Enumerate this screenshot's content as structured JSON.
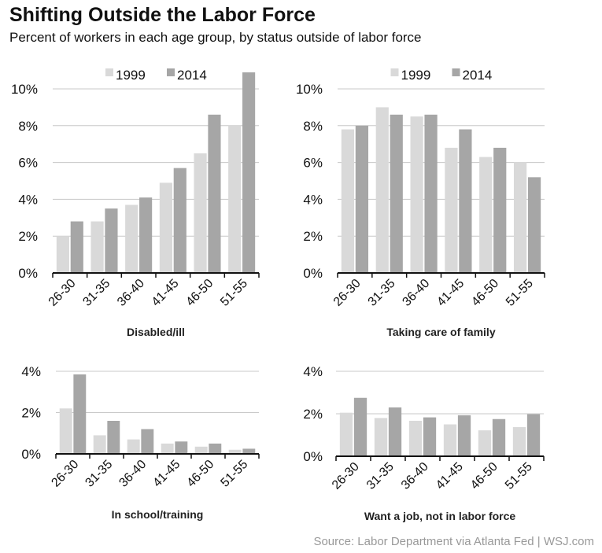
{
  "title": "Shifting Outside the Labor Force",
  "subtitle": "Percent of workers in each age group, by status outside of labor force",
  "source": "Source: Labor Department via Atlanta Fed |  WSJ.com",
  "colors": {
    "1999": "#d9d9d9",
    "2014": "#a6a6a6",
    "grid": "#c8c8c8",
    "axis": "#111111"
  },
  "chart_data": [
    {
      "type": "bar",
      "title": "Disabled/ill",
      "categories": [
        "26-30",
        "31-35",
        "36-40",
        "41-45",
        "46-50",
        "51-55"
      ],
      "ylim": [
        0,
        10
      ],
      "yticks": [
        "0%",
        "2%",
        "4%",
        "6%",
        "8%",
        "10%"
      ],
      "legend": "top",
      "series": [
        {
          "name": "1999",
          "values": [
            2.0,
            2.8,
            3.7,
            4.9,
            6.5,
            8.0
          ]
        },
        {
          "name": "2014",
          "values": [
            2.8,
            3.5,
            4.1,
            5.7,
            8.6,
            10.9
          ]
        }
      ]
    },
    {
      "type": "bar",
      "title": "Taking care of family",
      "categories": [
        "26-30",
        "31-35",
        "36-40",
        "41-45",
        "46-50",
        "51-55"
      ],
      "ylim": [
        0,
        10
      ],
      "yticks": [
        "0%",
        "2%",
        "4%",
        "6%",
        "8%",
        "10%"
      ],
      "legend": "top",
      "series": [
        {
          "name": "1999",
          "values": [
            7.8,
            9.0,
            8.5,
            6.8,
            6.3,
            6.0
          ]
        },
        {
          "name": "2014",
          "values": [
            8.0,
            8.6,
            8.6,
            7.8,
            6.8,
            5.2
          ]
        }
      ]
    },
    {
      "type": "bar",
      "title": "In school/training",
      "categories": [
        "26-30",
        "31-35",
        "36-40",
        "41-45",
        "46-50",
        "51-55"
      ],
      "ylim": [
        0,
        4
      ],
      "yticks": [
        "0%",
        "2%",
        "4%"
      ],
      "series": [
        {
          "name": "1999",
          "values": [
            2.2,
            0.9,
            0.7,
            0.5,
            0.35,
            0.2
          ]
        },
        {
          "name": "2014",
          "values": [
            3.85,
            1.6,
            1.2,
            0.6,
            0.5,
            0.25
          ]
        }
      ]
    },
    {
      "type": "bar",
      "title": "Want a job, not in labor force",
      "categories": [
        "26-30",
        "31-35",
        "36-40",
        "41-45",
        "46-50",
        "51-55"
      ],
      "ylim": [
        0,
        4
      ],
      "yticks": [
        "0%",
        "2%",
        "4%"
      ],
      "series": [
        {
          "name": "1999",
          "values": [
            2.05,
            1.8,
            1.67,
            1.5,
            1.22,
            1.37
          ]
        },
        {
          "name": "2014",
          "values": [
            2.75,
            2.3,
            1.83,
            1.93,
            1.75,
            1.98
          ]
        }
      ]
    }
  ]
}
